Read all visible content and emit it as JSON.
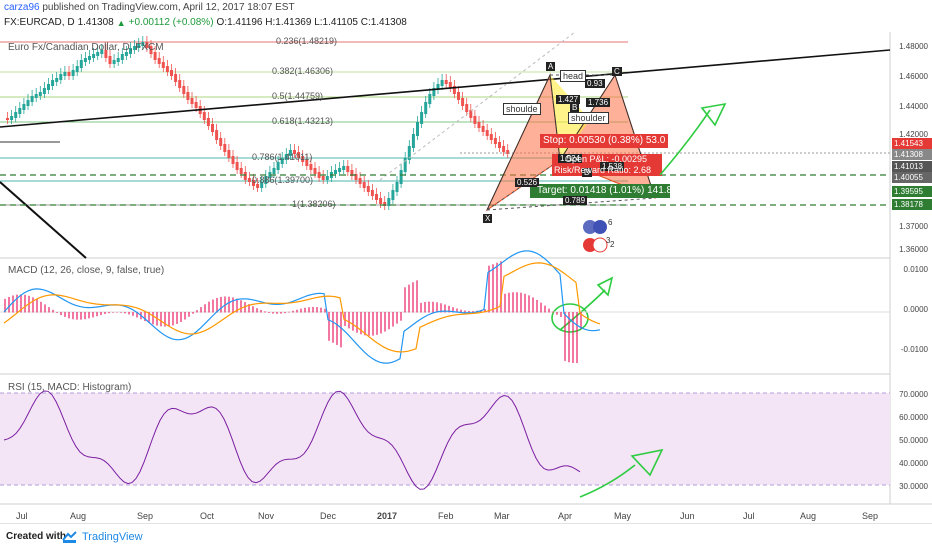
{
  "header": {
    "user": "carza96",
    "published": "published on TradingView.com, April 12, 2017 18:07 EST",
    "symbol": "FX:EURCAD, D",
    "last": "1.41308",
    "change": "+0.00112 (+0.08%)",
    "ohlc": "O:1.41196 H:1.41369 L:1.41105 C:1.41308"
  },
  "main_pane": {
    "title": "Euro Fx/Canadian Dollar, D, FXCM",
    "fib_levels": [
      "0.236(1.48219)",
      "0.382(1.46306)",
      "0.5(1.44759)",
      "0.618(1.43213)",
      "0.786(1.41011)",
      "0.886(1.39700)",
      "1(1.38206)"
    ],
    "price_ticks": [
      "1.48000",
      "1.46000",
      "1.44000",
      "1.42000",
      "1.37000",
      "1.36000"
    ],
    "price_tags": [
      {
        "label": "1.41543",
        "color": "#e53935"
      },
      {
        "label": "1.41308",
        "color": "#888888"
      },
      {
        "label": "1.41013",
        "color": "#555555"
      },
      {
        "label": "1.40055",
        "color": "#666666"
      },
      {
        "label": "1.39595",
        "color": "#2e7d32"
      },
      {
        "label": "1.38178",
        "color": "#2e7d32"
      }
    ],
    "pattern_points": [
      "X",
      "A",
      "B",
      "C",
      "D"
    ],
    "pattern_labels": [
      "head",
      "shoulde",
      "shoulder",
      "0.93",
      "1.427",
      "1.736",
      "1.524",
      "1.538",
      "0.526",
      "0.789"
    ],
    "stop_label": "Stop: 0.00530 (0.38%) 53.0",
    "risk_label": "Risk/Reward Ratio: 2.68",
    "open_pl_label": "Open P&L: -0.00295",
    "target_label": "Target: 0.01418 (1.01%) 141.8",
    "event_counts": [
      "6",
      "3",
      "2"
    ]
  },
  "macd_pane": {
    "title": "MACD (12, 26, close, 9, false, true)",
    "ticks": [
      "0.0100",
      "0.0000",
      "-0.0100"
    ]
  },
  "rsi_pane": {
    "title": "RSI (15, MACD: Histogram)",
    "ticks": [
      "70.0000",
      "60.0000",
      "50.0000",
      "40.0000",
      "30.0000"
    ]
  },
  "x_axis": [
    "Jul",
    "Aug",
    "Sep",
    "Oct",
    "Nov",
    "Dec",
    "2017",
    "Feb",
    "Mar",
    "Apr",
    "May",
    "Jun",
    "Jul",
    "Aug",
    "Sep"
  ],
  "footer": {
    "created_with": "Created with",
    "brand": "TradingView"
  },
  "colors": {
    "bull": "#26a69a",
    "bear": "#ef5350",
    "macd_line": "#2196f3",
    "signal_line": "#ff9800",
    "rsi_line": "#7b1fa2",
    "rsi_band": "#f3e5f5",
    "pattern_fill": "#ff7043",
    "annotation": "#2ecc40"
  }
}
